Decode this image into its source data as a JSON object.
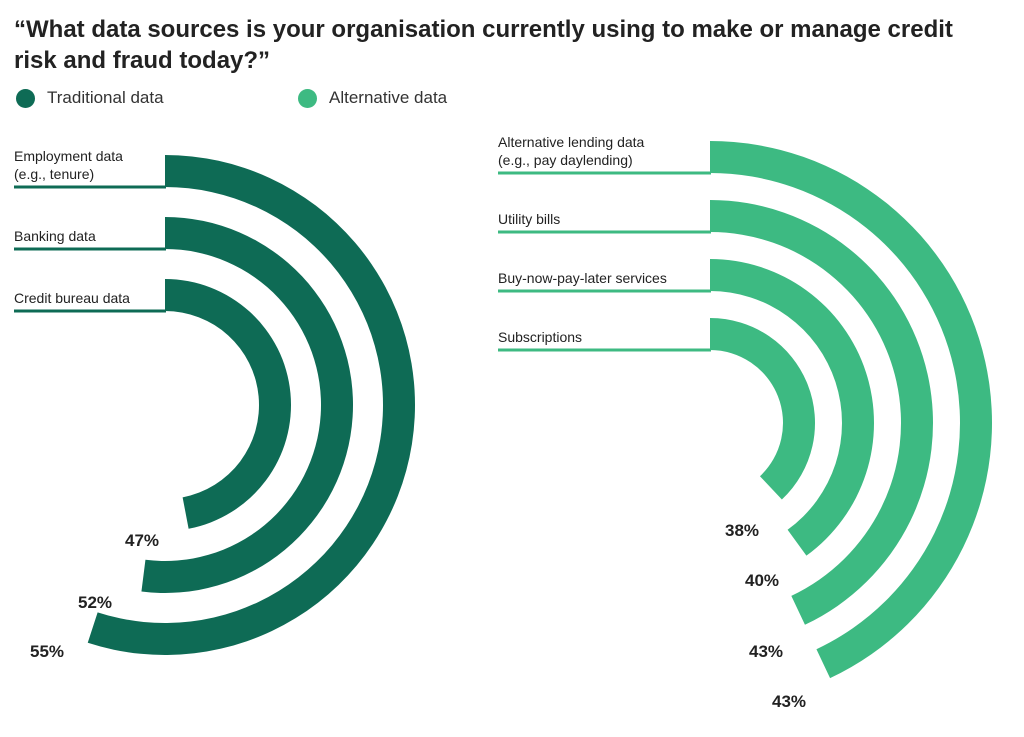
{
  "title": "“What data sources is your organisation currently using to make or manage credit risk and fraud today?”",
  "legend": [
    {
      "label": "Traditional data",
      "color": "#0e6b55"
    },
    {
      "label": "Alternative data",
      "color": "#3dba82"
    }
  ],
  "chart_data": [
    {
      "type": "radial-bar",
      "series": "Traditional data",
      "color": "#0e6b55",
      "unit": "%",
      "categories": [
        {
          "label": [
            "Employment data",
            "(e.g., tenure)"
          ],
          "value": 55,
          "value_label": "55%"
        },
        {
          "label": [
            "Banking data"
          ],
          "value": 52,
          "value_label": "52%"
        },
        {
          "label": [
            "Credit bureau data"
          ],
          "value": 47,
          "value_label": "47%"
        }
      ]
    },
    {
      "type": "radial-bar",
      "series": "Alternative data",
      "color": "#3dba82",
      "unit": "%",
      "categories": [
        {
          "label": [
            "Alternative lending data",
            "(e.g., pay daylending)"
          ],
          "value": 43,
          "value_label": "43%"
        },
        {
          "label": [
            "Utility bills"
          ],
          "value": 43,
          "value_label": "43%"
        },
        {
          "label": [
            "Buy-now-pay-later services"
          ],
          "value": 40,
          "value_label": "40%"
        },
        {
          "label": [
            "Subscriptions"
          ],
          "value": 38,
          "value_label": "38%"
        }
      ]
    }
  ]
}
